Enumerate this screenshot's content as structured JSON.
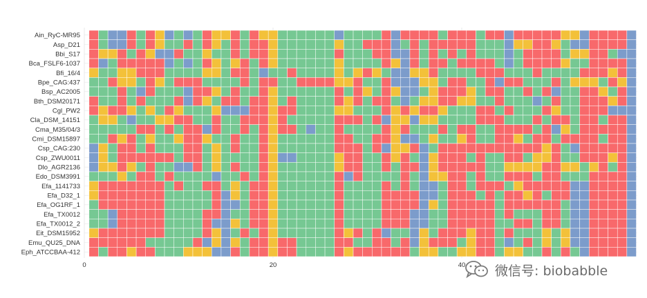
{
  "colors": {
    "A": "#F8696B",
    "C": "#F3C13A",
    "G": "#76C893",
    "T": "#7C9CCB",
    "grid": "#E5E5E5"
  },
  "watermark": {
    "text": "微信号: biobabble",
    "icon": "wechat-icon"
  },
  "chart_data": {
    "type": "heatmap",
    "title": "",
    "xlabel": "",
    "ylabel": "",
    "x_ticks": [
      0,
      20,
      40
    ],
    "xlim": [
      0,
      57
    ],
    "legend": "none",
    "grid": true,
    "categories": [
      "A",
      "C",
      "G",
      "T"
    ],
    "rows": [
      "Ain_RyC-MR95",
      "Asp_D21",
      "Bbi_S17",
      "Bca_FSLF6-1037",
      "Bfi_16/4",
      "Bpe_CAG:437",
      "Bsp_AC2005",
      "Bth_DSM20171",
      "Cgl_PW2",
      "Cla_DSM_14151",
      "Cma_M35/04/3",
      "Cmi_DSM15897",
      "Csp_CAG:230",
      "Csp_ZWU0011",
      "Dlo_AGR2136",
      "Edo_DSM3991",
      "Efa_1141733",
      "Efa_D32_1",
      "Efa_OG1RF_1",
      "Efa_TX0012",
      "Efa_TX0012_2",
      "Eit_DSM15952",
      "Emu_QU25_DNA",
      "Eph_ATCCBAA-412"
    ],
    "sequences": [
      "AGTTAGACTGTGACCAGACCGGGGGGTGGGGATAAAAGAAAGAATAAAAACCTAAAAT",
      "AGTTAGACGGAGACGAGAACGGGGGGCGGAAATGAGAAAAAGGGTCCAACGTTAAAAT",
      "ACCAGACTTAGGCGGAGAACGGGGGGAGGGAATTAGAGAGAGGGTGAAAAGCCAAGTT",
      "ATGAAAAATGTGACGCAGACGGGGGGCGGGGACTAGAAGAAAAGTGAAAACGGAAAAT",
      "CGGCCAAAGGGGCCGAAGTGGAGGGGCGCACGTTCCAGGGGAAAGGGAGGGGAAACAT",
      "GGACCGACGAAAGGGGAGAAGGAAAACCAGGATTTCCGAAGGATAAGGGAGCCCGACT",
      "GGGAGTAGGGTAACGAGGACGGGGGGAGACGACTTGCAAACGAAGGAGATGGAACGAT",
      "AGGAGAGGGATACGAAGAACGAGGGGACAGAAGTGCCAACCGGAGGGTGAGGAAACAT",
      "ACAACGCGACGGGCTTTAACAAGGGGCCGGGACACAACGGGAAGAGGGACGGAAATTT",
      "GCCGTGGCCAAGGAGGAAACAGGGGGAAAGATCCTCCGGGGAAAGGGAGAAGAAGAAT",
      "GGGGGAAGAGAATAGGAGACAAGTGGAGGGGACAGGGAGAAGGAAAAGATCGAAAAAT",
      "GGACAGCGGCAACGGAGGACGGGGGGAAGGAACTTGCGGCAGGAACGAAGAAAAGAAT",
      "TCGAAGAGGGAAGCGAGGACGGGGGGAAAGATCCATGAAAAAAAAAAACAGTAAAAAT",
      "TCGAAAAAAGAAGCGGGGACTTGGGGCAAGGACAGTCAAAGAGGAAGCCAGGAAACAT",
      "TCCACGAGGTTAGCGAGGACGGGGGGCAAGGAGAATCAAAAAGGCCCCAACCGCAGAT",
      "GGGCGAAGAGGGGTGGAGACGGGGGGATAGGGGAGTCCAAGAGGAAAGAAGGGAAAAT",
      "CAAAAAAAGAGGAAGCGAACGGGGGGAGGGGAGAGTTGAAGAAAGCAAAAATTAAAAT",
      "CAAAAAAAGGGGGATCGAACGGGGGGAGGGGAAAATTGAAAGAGAACAGAATTAAAAT",
      "GAAAAAAAGGGGGATTGAACGGGGGGAGGGGAAAATCGAAAAAGAAAAAAGTTAAAAT",
      "GGTAAAAAGGGGAATGGAACGGGGGGAGGGGAAATTGGAAAAAGAGGGAAGTTAAAAT",
      "GGTAAAAAGGGGATTCGAACGGGGGGAGGGGAAATTGGAAAAAGGAAGAAGTTAAAAT",
      "CAAAAAAAGGGGACTGAGACGGGGGGACAGATGGTCGAAACAAGAGGGCGCTTAAAAT",
      "AAAAAAGGGGGATCTCGAACAAGGGGAAGGAAGATCAAAGCAAGTGAGCGCTTAAAAT",
      "AGAACAAGGGCCCTTAGAACAAGGGGACAAAAAAGCCGGCCAAGCCGGAGAGTAAAAT"
    ]
  }
}
